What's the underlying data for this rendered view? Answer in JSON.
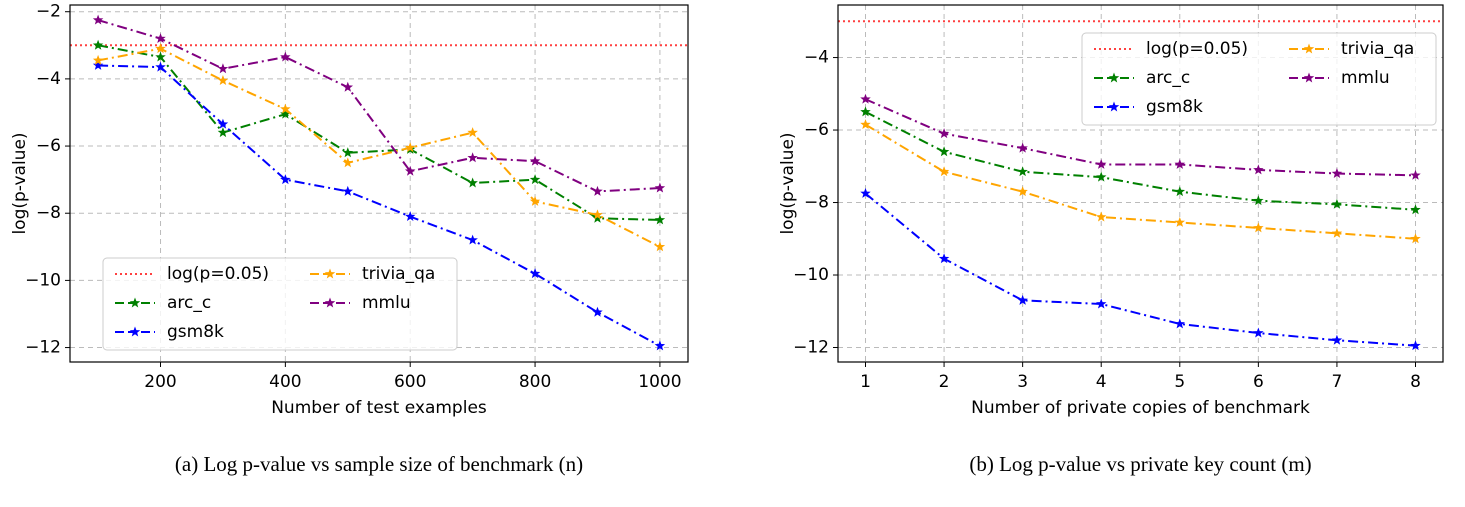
{
  "chart_data": [
    {
      "type": "line",
      "ylabel": "log(p-value)",
      "xlabel": "Number of test examples",
      "caption": "(a) Log p-value vs sample size of benchmark (n)",
      "x": [
        100,
        200,
        300,
        400,
        500,
        600,
        700,
        800,
        900,
        1000
      ],
      "hline": {
        "name": "log(p=0.05)",
        "value": -3,
        "color": "#ff4040"
      },
      "series": [
        {
          "name": "arc_c",
          "color": "#008000",
          "values": [
            -3.0,
            -3.35,
            -5.6,
            -5.05,
            -6.2,
            -6.1,
            -7.1,
            -7.0,
            -8.15,
            -8.2
          ]
        },
        {
          "name": "gsm8k",
          "color": "#0000ff",
          "values": [
            -3.6,
            -3.65,
            -5.35,
            -7.0,
            -7.35,
            -8.1,
            -8.8,
            -9.8,
            -10.95,
            -11.95
          ]
        },
        {
          "name": "trivia_qa",
          "color": "#ffa500",
          "values": [
            -3.45,
            -3.1,
            -4.05,
            -4.9,
            -6.5,
            -6.05,
            -5.6,
            -7.65,
            -8.05,
            -9.0
          ]
        },
        {
          "name": "mmlu",
          "color": "#800080",
          "values": [
            -2.25,
            -2.8,
            -3.7,
            -3.35,
            -4.25,
            -6.75,
            -6.35,
            -6.45,
            -7.35,
            -7.25
          ]
        }
      ],
      "xlim": [
        55,
        1045
      ],
      "xticks": [
        200,
        400,
        600,
        800,
        1000
      ],
      "ylim": [
        -12.43,
        -1.8
      ],
      "yticks": [
        {
          "value": -12,
          "label": "−12"
        },
        {
          "value": -10,
          "label": "−10"
        },
        {
          "value": -8,
          "label": "−8"
        },
        {
          "value": -6,
          "label": "−6"
        },
        {
          "value": -4,
          "label": "−4"
        },
        {
          "value": -2,
          "label": "−2"
        }
      ],
      "grid": true,
      "legend": "lower left"
    },
    {
      "type": "line",
      "ylabel": "log(p-value)",
      "xlabel": "Number of private copies of benchmark",
      "caption": "(b) Log p-value vs private key count (m)",
      "x": [
        1,
        2,
        3,
        4,
        5,
        6,
        7,
        8
      ],
      "hline": {
        "name": "log(p=0.05)",
        "value": -3,
        "color": "#ff4040"
      },
      "series": [
        {
          "name": "arc_c",
          "color": "#008000",
          "values": [
            -5.5,
            -6.6,
            -7.15,
            -7.3,
            -7.7,
            -7.95,
            -8.05,
            -8.2
          ]
        },
        {
          "name": "gsm8k",
          "color": "#0000ff",
          "values": [
            -7.75,
            -9.55,
            -10.7,
            -10.8,
            -11.35,
            -11.6,
            -11.8,
            -11.95
          ]
        },
        {
          "name": "trivia_qa",
          "color": "#ffa500",
          "values": [
            -5.85,
            -7.15,
            -7.7,
            -8.4,
            -8.55,
            -8.7,
            -8.85,
            -9.0
          ]
        },
        {
          "name": "mmlu",
          "color": "#800080",
          "values": [
            -5.15,
            -6.1,
            -6.5,
            -6.95,
            -6.95,
            -7.1,
            -7.2,
            -7.25
          ]
        }
      ],
      "xlim": [
        0.65,
        8.35
      ],
      "xticks": [
        1,
        2,
        3,
        4,
        5,
        6,
        7,
        8
      ],
      "ylim": [
        -12.4,
        -2.55
      ],
      "yticks": [
        {
          "value": -12,
          "label": "−12"
        },
        {
          "value": -10,
          "label": "−10"
        },
        {
          "value": -8,
          "label": "−8"
        },
        {
          "value": -6,
          "label": "−6"
        },
        {
          "value": -4,
          "label": "−4"
        }
      ],
      "grid": true,
      "legend": "upper right"
    }
  ]
}
